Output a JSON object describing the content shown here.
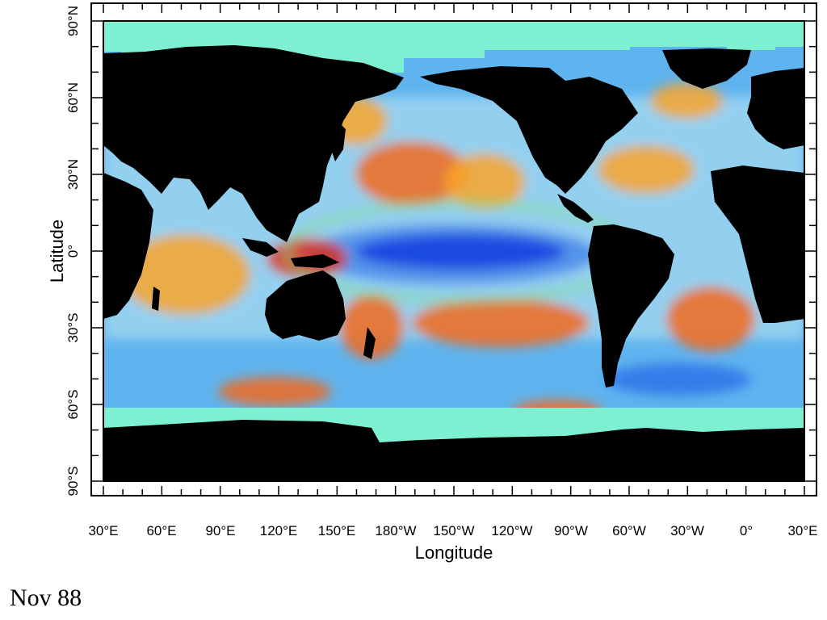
{
  "map": {
    "xlabel": "Longitude",
    "ylabel": "Latitude",
    "x_ticks": [
      "30°E",
      "60°E",
      "90°E",
      "120°E",
      "150°E",
      "180°W",
      "150°W",
      "120°W",
      "90°W",
      "60°W",
      "30°W",
      "0°",
      "30°E"
    ],
    "y_ticks": [
      "90°N",
      "60°N",
      "30°N",
      "0°",
      "30°S",
      "60°S",
      "90°S"
    ],
    "colors": {
      "land": "#000000",
      "ice": "#7ef0d2",
      "field_palette": [
        "#0a1ad6",
        "#2a6ee8",
        "#5fb4ef",
        "#a9dcef",
        "#7ee07a",
        "#f7dc3a",
        "#f9a52c",
        "#f16a1c",
        "#e02a10"
      ]
    }
  },
  "caption": "Nov 88"
}
